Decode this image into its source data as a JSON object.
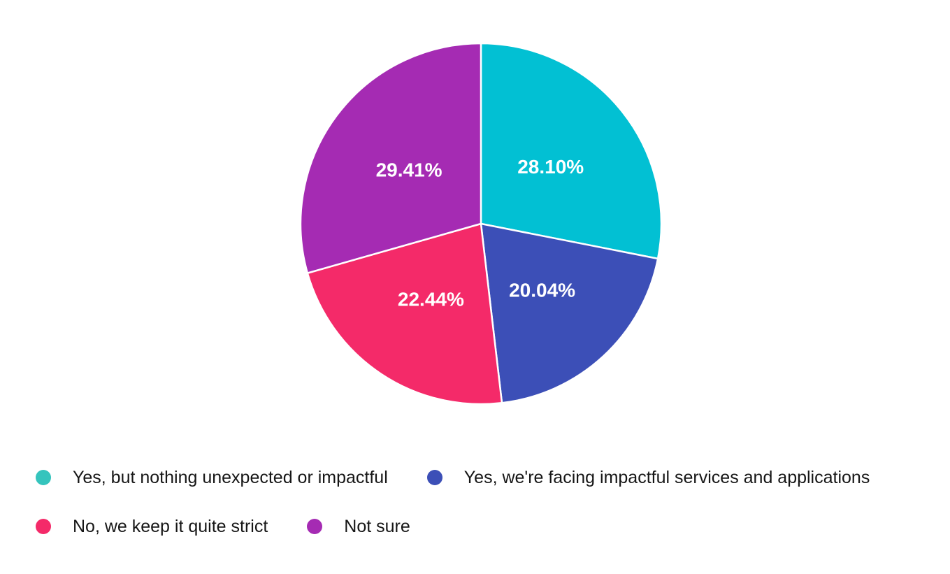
{
  "chart_data": {
    "type": "pie",
    "title": "",
    "start_angle_deg": -90,
    "direction": "clockwise",
    "background_color": "#ffffff",
    "slice_border_color": "#ffffff",
    "percent_label_color": "#ffffff",
    "legend_text_color": "#161616",
    "legend_position": "bottom-left",
    "slices": [
      {
        "label": "Yes, but nothing unexpected or impactful",
        "value": 28.1,
        "display": "28.10%",
        "color": "#02c0d3",
        "legend_color": "#35c4bd"
      },
      {
        "label": "Yes, we're facing impactful services and applications",
        "value": 20.04,
        "display": "20.04%",
        "color": "#3c4fb7",
        "legend_color": "#3c4fb7"
      },
      {
        "label": "No, we keep it quite strict",
        "value": 22.44,
        "display": "22.44%",
        "color": "#f42a69",
        "legend_color": "#f42a69"
      },
      {
        "label": "Not sure",
        "value": 29.41,
        "display": "29.41%",
        "color": "#a52bb3",
        "legend_color": "#a52bb3"
      }
    ],
    "legend_rows": [
      [
        0,
        1
      ],
      [
        2,
        3
      ]
    ]
  }
}
